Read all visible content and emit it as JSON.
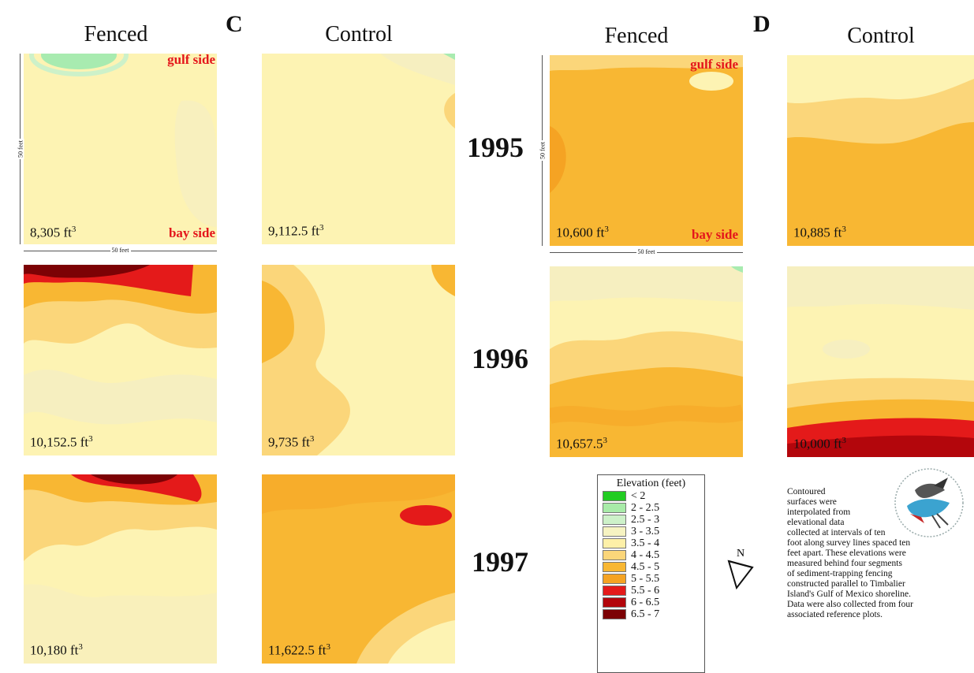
{
  "headers": {
    "left_fenced": "Fenced",
    "left_control": "Control",
    "right_fenced": "Fenced",
    "right_control": "Control",
    "letter_c": "C",
    "letter_d": "D"
  },
  "years": [
    "1995",
    "1996",
    "1997"
  ],
  "sides": {
    "gulf": "gulf side",
    "bay": "bay side"
  },
  "scale": {
    "label": "50 feet"
  },
  "volumes": {
    "c_fenced_1995": "8,305 ft",
    "c_control_1995": "9,112.5 ft",
    "c_fenced_1996": "10,152.5 ft",
    "c_control_1996": "9,735 ft",
    "c_fenced_1997": "10,180 ft",
    "c_control_1997": "11,622.5 ft",
    "d_fenced_1995": "10,600 ft",
    "d_control_1995": "10,885 ft",
    "d_fenced_1996": "10,657.5",
    "d_control_1996": "10,000 ft",
    "cube": "3"
  },
  "legend": {
    "title": "Elevation (feet)",
    "items": [
      {
        "label": "< 2",
        "color": "#22cc22"
      },
      {
        "label": "2 - 2.5",
        "color": "#a8eba8"
      },
      {
        "label": "2.5 - 3",
        "color": "#cdf1c9"
      },
      {
        "label": "3 - 3.5",
        "color": "#f6f3c2"
      },
      {
        "label": "3.5 - 4",
        "color": "#fdf0a8"
      },
      {
        "label": "4 - 4.5",
        "color": "#fbd67a"
      },
      {
        "label": "4.5 - 5",
        "color": "#f8b733"
      },
      {
        "label": "5 - 5.5",
        "color": "#f5a323"
      },
      {
        "label": "5.5 - 6",
        "color": "#e41a1a"
      },
      {
        "label": "6 - 6.5",
        "color": "#b3060c"
      },
      {
        "label": "6.5 - 7",
        "color": "#7c0205"
      }
    ]
  },
  "north": "N",
  "note_lines": [
    "Contoured",
    "surfaces were",
    "interpolated from",
    "elevational data",
    "collected at intervals of ten",
    "foot along survey lines spaced ten",
    "feet apart.  These elevations were",
    "measured behind four segments",
    "of sediment-trapping fencing",
    "constructed parallel to Timbalier",
    "Island's Gulf of Mexico shoreline.",
    "Data were also collected from four",
    "associated reference plots."
  ]
}
